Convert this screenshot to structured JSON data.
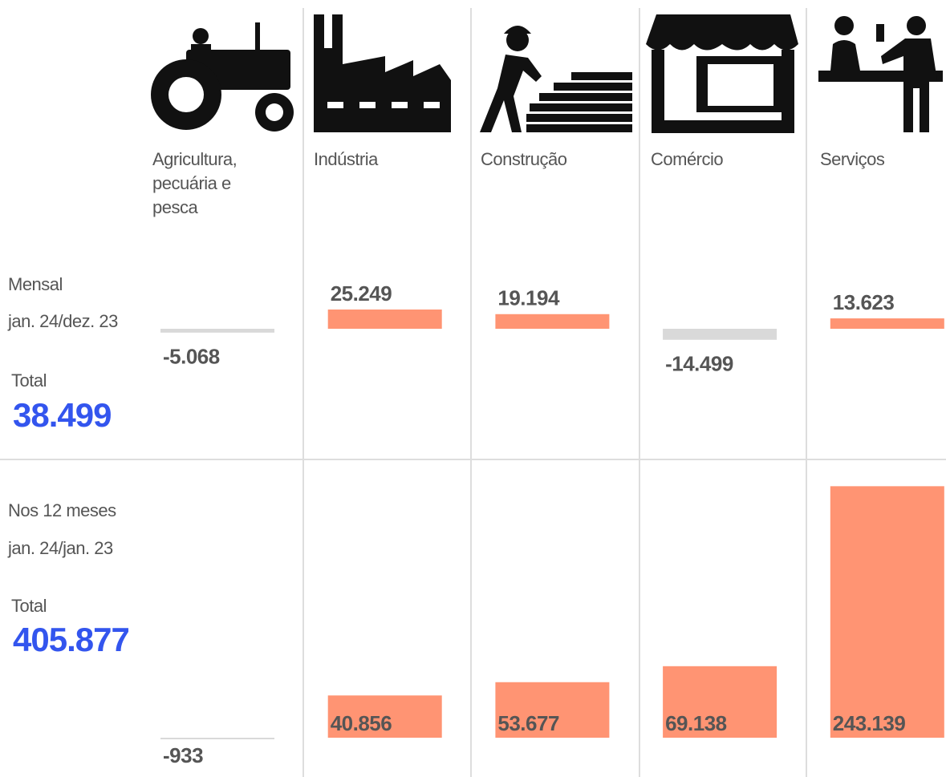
{
  "chart_data": {
    "type": "bar",
    "categories": [
      "Agricultura, pecuária e pesca",
      "Indústria",
      "Construção",
      "Comércio",
      "Serviços"
    ],
    "positive_color": "#ff9473",
    "negative_color": "#d9d9d9",
    "total_color": "#3355ee",
    "series": [
      {
        "name": "Mensal",
        "period": "jan. 24/dez. 23",
        "total_label": "Total",
        "total": 38499,
        "total_value_label": "38.499",
        "values": [
          -5068,
          25249,
          19194,
          -14499,
          13623
        ],
        "value_labels": [
          "-5.068",
          "25.249",
          "19.194",
          "-14.499",
          "13.623"
        ]
      },
      {
        "name": "Nos 12 meses",
        "period": "jan. 24/jan. 23",
        "total_label": "Total",
        "total": 405877,
        "total_value_label": "405.877",
        "values": [
          -933,
          40856,
          53677,
          69138,
          243139
        ],
        "value_labels": [
          "-933",
          "40.856",
          "53.677",
          "69.138",
          "243.139"
        ]
      }
    ]
  }
}
